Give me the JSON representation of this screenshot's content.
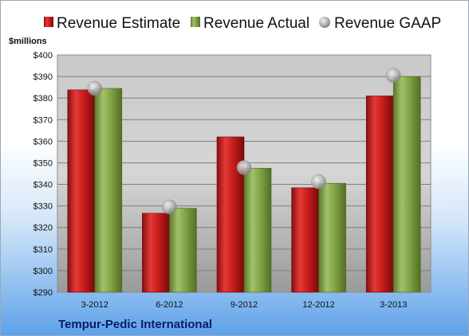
{
  "chart_data": {
    "type": "bar",
    "categories": [
      "3-2012",
      "6-2012",
      "9-2012",
      "12-2012",
      "3-2013"
    ],
    "series": [
      {
        "name": "Revenue Estimate",
        "values": [
          383.8,
          326.6,
          362.0,
          338.4,
          381.0
        ],
        "color": "#d01f1f",
        "marker": "bar"
      },
      {
        "name": "Revenue Actual",
        "values": [
          384.5,
          328.9,
          347.5,
          340.5,
          390.0
        ],
        "color": "#86a84a",
        "marker": "bar"
      },
      {
        "name": "Revenue GAAP",
        "values": [
          384.5,
          329.5,
          347.8,
          341.2,
          390.5
        ],
        "color": "#b4b4b4",
        "marker": "circle"
      }
    ],
    "ylabel": "$millions",
    "ylim": [
      290,
      400
    ],
    "yticks": [
      "$290",
      "$300",
      "$310",
      "$320",
      "$330",
      "$340",
      "$350",
      "$360",
      "$370",
      "$380",
      "$390",
      "$400"
    ],
    "grid": true,
    "legend_position": "top",
    "footer": "Tempur-Pedic International"
  }
}
